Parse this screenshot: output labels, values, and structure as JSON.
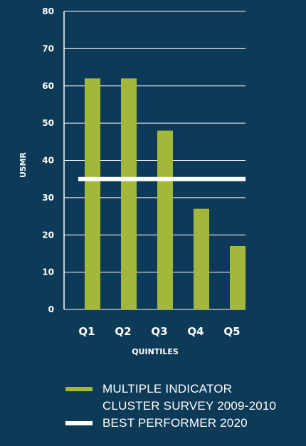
{
  "colors": {
    "background": "#0d3a56",
    "bar": "#a3b83a",
    "benchmark": "#ffffff",
    "text": "#ffffff"
  },
  "chart_data": {
    "type": "bar",
    "categories": [
      "Q1",
      "Q2",
      "Q3",
      "Q4",
      "Q5"
    ],
    "series": [
      {
        "name": "MULTIPLE INDICATOR CLUSTER SURVEY 2009-2010",
        "values": [
          62,
          62,
          48,
          27,
          17
        ]
      }
    ],
    "reference_line": {
      "name": "BEST PERFORMER 2020",
      "value": 35
    },
    "ylabel": "U5MR",
    "xlabel": "QUINTILES",
    "ylim": [
      0,
      80
    ],
    "yticks": [
      0,
      10,
      20,
      30,
      40,
      50,
      60,
      70,
      80
    ],
    "grid": true,
    "legend_position": "bottom"
  },
  "legend": [
    {
      "label": "MULTIPLE INDICATOR\nCLUSTER SURVEY 2009-2010",
      "color": "#a3b83a"
    },
    {
      "label": "BEST PERFORMER 2020",
      "color": "#ffffff"
    }
  ]
}
